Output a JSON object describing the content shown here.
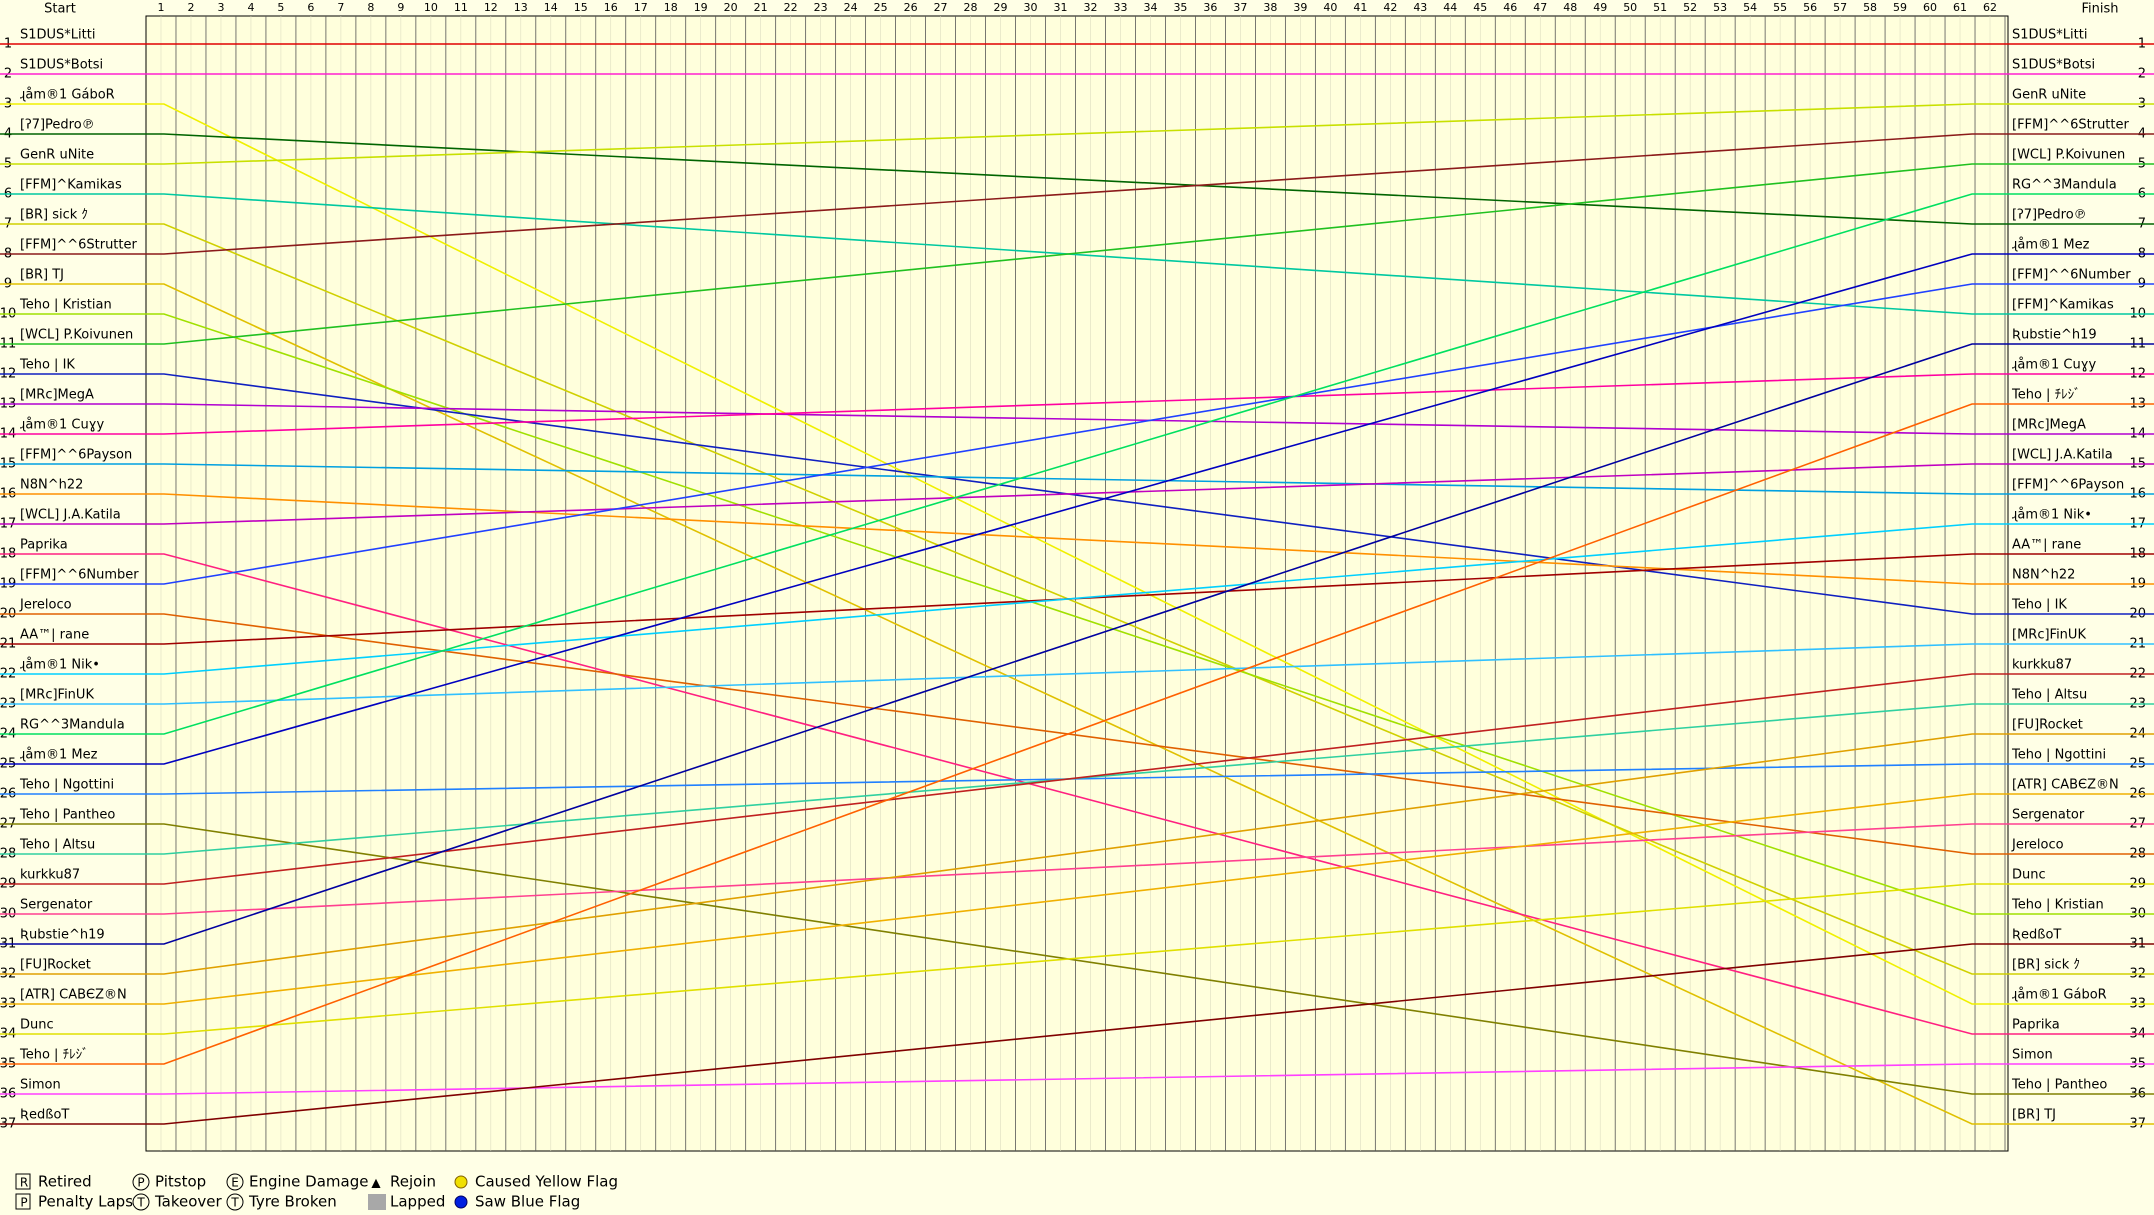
{
  "chart_data": {
    "type": "lapchart",
    "start_label": "Start",
    "finish_label": "Finish",
    "laps": [
      1,
      2,
      3,
      4,
      5,
      6,
      7,
      8,
      9,
      10,
      11,
      12,
      13,
      14,
      15,
      16,
      17,
      18,
      19,
      20,
      21,
      22,
      23,
      24,
      25,
      26,
      27,
      28,
      29,
      30,
      31,
      32,
      33,
      34,
      35,
      36,
      37,
      38,
      39,
      40,
      41,
      42,
      43,
      44,
      45,
      46,
      47,
      48,
      49,
      50,
      51,
      52,
      53,
      54,
      55,
      56,
      57,
      58,
      59,
      60,
      61,
      62
    ],
    "positions": [
      1,
      2,
      3,
      4,
      5,
      6,
      7,
      8,
      9,
      10,
      11,
      12,
      13,
      14,
      15,
      16,
      17,
      18,
      19,
      20,
      21,
      22,
      23,
      24,
      25,
      26,
      27,
      28,
      29,
      30,
      31,
      32,
      33,
      34,
      35,
      36,
      37
    ],
    "start_order": [
      "S1DUS*Litti",
      "S1DUS*Botsi",
      "ɻåm®1 GáboR",
      "[ʔ7]Pedro℗",
      "GenR uNite",
      "[FFM]^Kamikas",
      "[BR] sick ｸ",
      "[FFM]^^6Strutter",
      "[BR] TJ",
      "Teho | Kristian",
      "[WCL] P.Koivunen",
      "Teho | IK",
      "[MRc]MegA",
      "ɻåm®1 Cuɣy",
      "[FFM]^^6Payson",
      "N8N^h22",
      "[WCL] J.A.Katila",
      "Paprika",
      "[FFM]^^6Number",
      "Jereloco",
      "AA™| rane",
      "ɻåm®1 Nik•",
      "[MRc]FinUK",
      "RG^^3Mandula",
      "ɻåm®1 Mez",
      "Teho | Ngottini",
      "Teho | Pantheo",
      "Teho | Altsu",
      "kurkku87",
      "Sergenator",
      "Ʀubstie^h19",
      "[FU]Rocket",
      "[ATR] CABЄZ®N",
      "Dunc",
      "Teho | ﾁﾚｼﾞ",
      "Simon",
      "ƦedßoT"
    ],
    "colors": [
      "#e00000",
      "#ff20d0",
      "#f0f000",
      "#006400",
      "#c8e000",
      "#00c8a0",
      "#d0d000",
      "#8b1a1a",
      "#e0c000",
      "#a0e000",
      "#20c020",
      "#1020c0",
      "#b000d0",
      "#ff00a0",
      "#00a0e0",
      "#ff9000",
      "#c000c0",
      "#ff2080",
      "#2040ff",
      "#e06000",
      "#a00000",
      "#00d0ff",
      "#30c0ff",
      "#00e060",
      "#0000c0",
      "#2080ff",
      "#808000",
      "#30d0a0",
      "#c02020",
      "#ff4090",
      "#0000a0",
      "#e0a000",
      "#f0b000",
      "#e0e000",
      "#ff6000",
      "#ff40ff",
      "#800000"
    ],
    "finish_order": [
      "S1DUS*Litti",
      "S1DUS*Botsi",
      "GenR uNite",
      "[FFM]^^6Strutter",
      "[WCL] P.Koivunen",
      "RG^^3Mandula",
      "[ʔ7]Pedro℗",
      "ɻåm®1 Mez",
      "[FFM]^^6Number",
      "[FFM]^Kamikas",
      "Ʀubstie^h19",
      "ɻåm®1 Cuɣy",
      "Teho | ﾁﾚｼﾞ",
      "[MRc]MegA",
      "[WCL] J.A.Katila",
      "[FFM]^^6Payson",
      "ɻåm®1 Nik•",
      "AA™| rane",
      "N8N^h22",
      "Teho | IK",
      "[MRc]FinUK",
      "kurkku87",
      "Teho | Altsu",
      "[FU]Rocket",
      "Teho | Ngottini",
      "[ATR] CABЄZ®N",
      "Sergenator",
      "Jereloco",
      "Dunc",
      "Teho | Kristian",
      "ƦedßoT",
      "[BR] sick ｸ",
      "ɻåm®1 GáboR",
      "Paprika",
      "Simon",
      "Teho | Pantheo",
      "[BR] TJ"
    ],
    "legend": [
      {
        "symbol": "R",
        "label": "Retired"
      },
      {
        "symbol": "P",
        "label": "Penalty Laps"
      },
      {
        "symbol": "P",
        "label": "Pitstop"
      },
      {
        "symbol": "T",
        "label": "Takeover"
      },
      {
        "symbol": "E",
        "label": "Engine Damage"
      },
      {
        "symbol": "T",
        "label": "Tyre Broken"
      },
      {
        "symbol": "▲",
        "label": "Rejoin"
      },
      {
        "symbol": "",
        "label": "Lapped"
      },
      {
        "symbol": "",
        "label": "Caused Yellow Flag"
      },
      {
        "symbol": "",
        "label": "Saw Blue Flag"
      }
    ]
  }
}
